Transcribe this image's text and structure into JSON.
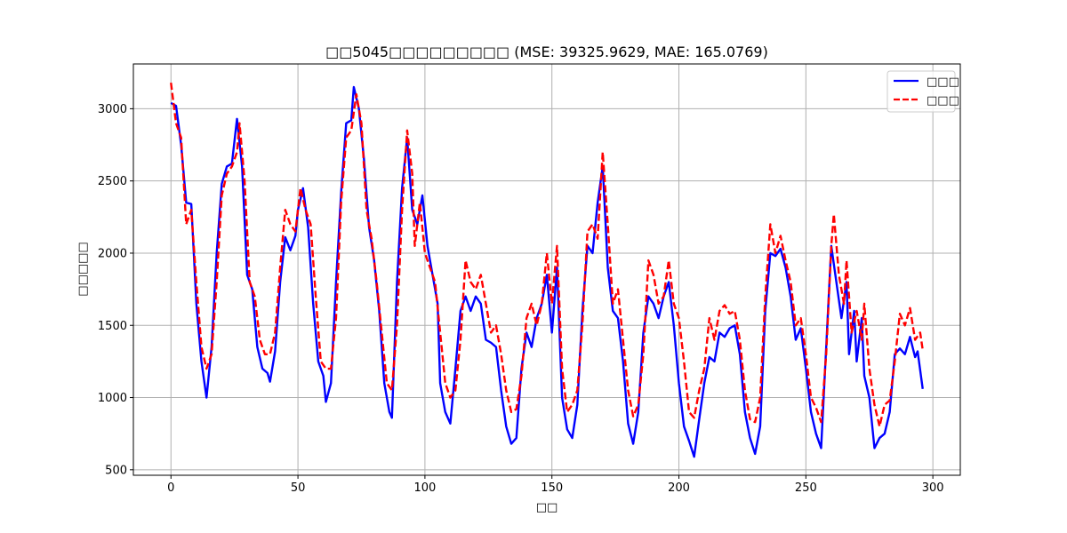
{
  "chart_data": {
    "type": "line",
    "title": "□□5045□□□□□□□□□ (MSE: 39325.9629, MAE: 165.0769)",
    "xlabel": "□□",
    "ylabel": "□□□□□",
    "xlim": [
      -14.8,
      310.8
    ],
    "ylim": [
      462,
      3310
    ],
    "xticks": [
      0,
      50,
      100,
      150,
      200,
      250,
      300
    ],
    "yticks": [
      500,
      1000,
      1500,
      2000,
      2500,
      3000
    ],
    "grid": true,
    "legend_position": "top-right",
    "series": [
      {
        "name": "□□□",
        "color": "#0000ff",
        "style": "solid",
        "keyframes": [
          [
            0,
            3040
          ],
          [
            2,
            3020
          ],
          [
            4,
            2750
          ],
          [
            6,
            2350
          ],
          [
            8,
            2340
          ],
          [
            10,
            1650
          ],
          [
            12,
            1250
          ],
          [
            14,
            1000
          ],
          [
            16,
            1350
          ],
          [
            18,
            2000
          ],
          [
            20,
            2480
          ],
          [
            22,
            2600
          ],
          [
            24,
            2620
          ],
          [
            26,
            2930
          ],
          [
            28,
            2600
          ],
          [
            30,
            1850
          ],
          [
            32,
            1750
          ],
          [
            34,
            1350
          ],
          [
            36,
            1200
          ],
          [
            38,
            1170
          ],
          [
            39,
            1110
          ],
          [
            41,
            1320
          ],
          [
            43,
            1800
          ],
          [
            45,
            2110
          ],
          [
            47,
            2020
          ],
          [
            49,
            2120
          ],
          [
            50,
            2300
          ],
          [
            52,
            2450
          ],
          [
            54,
            2180
          ],
          [
            56,
            1650
          ],
          [
            58,
            1250
          ],
          [
            60,
            1150
          ],
          [
            61,
            970
          ],
          [
            63,
            1100
          ],
          [
            65,
            1800
          ],
          [
            67,
            2420
          ],
          [
            69,
            2900
          ],
          [
            71,
            2920
          ],
          [
            72,
            3150
          ],
          [
            74,
            3000
          ],
          [
            76,
            2650
          ],
          [
            78,
            2180
          ],
          [
            80,
            1950
          ],
          [
            82,
            1600
          ],
          [
            84,
            1100
          ],
          [
            86,
            900
          ],
          [
            87,
            860
          ],
          [
            89,
            1800
          ],
          [
            91,
            2450
          ],
          [
            93,
            2800
          ],
          [
            95,
            2300
          ],
          [
            97,
            2200
          ],
          [
            99,
            2400
          ],
          [
            101,
            2050
          ],
          [
            103,
            1850
          ],
          [
            105,
            1650
          ],
          [
            106,
            1100
          ],
          [
            108,
            900
          ],
          [
            110,
            820
          ],
          [
            112,
            1200
          ],
          [
            114,
            1600
          ],
          [
            116,
            1700
          ],
          [
            118,
            1600
          ],
          [
            120,
            1700
          ],
          [
            122,
            1650
          ],
          [
            124,
            1400
          ],
          [
            126,
            1380
          ],
          [
            128,
            1350
          ],
          [
            130,
            1050
          ],
          [
            132,
            800
          ],
          [
            134,
            680
          ],
          [
            136,
            720
          ],
          [
            138,
            1200
          ],
          [
            140,
            1450
          ],
          [
            142,
            1350
          ],
          [
            144,
            1550
          ],
          [
            146,
            1650
          ],
          [
            148,
            1850
          ],
          [
            150,
            1450
          ],
          [
            152,
            1900
          ],
          [
            154,
            1000
          ],
          [
            156,
            780
          ],
          [
            158,
            720
          ],
          [
            160,
            950
          ],
          [
            162,
            1600
          ],
          [
            164,
            2050
          ],
          [
            166,
            2000
          ],
          [
            168,
            2350
          ],
          [
            170,
            2600
          ],
          [
            172,
            1900
          ],
          [
            174,
            1600
          ],
          [
            176,
            1550
          ],
          [
            178,
            1250
          ],
          [
            180,
            820
          ],
          [
            182,
            680
          ],
          [
            184,
            900
          ],
          [
            186,
            1450
          ],
          [
            188,
            1700
          ],
          [
            190,
            1650
          ],
          [
            192,
            1550
          ],
          [
            194,
            1700
          ],
          [
            196,
            1800
          ],
          [
            198,
            1500
          ],
          [
            200,
            1100
          ],
          [
            202,
            800
          ],
          [
            204,
            700
          ],
          [
            206,
            590
          ],
          [
            208,
            850
          ],
          [
            210,
            1100
          ],
          [
            212,
            1280
          ],
          [
            214,
            1250
          ],
          [
            216,
            1450
          ],
          [
            218,
            1420
          ],
          [
            220,
            1480
          ],
          [
            222,
            1500
          ],
          [
            224,
            1300
          ],
          [
            226,
            900
          ],
          [
            228,
            720
          ],
          [
            230,
            610
          ],
          [
            232,
            800
          ],
          [
            234,
            1600
          ],
          [
            236,
            2000
          ],
          [
            238,
            1980
          ],
          [
            240,
            2030
          ],
          [
            242,
            1900
          ],
          [
            244,
            1700
          ],
          [
            246,
            1400
          ],
          [
            248,
            1480
          ],
          [
            250,
            1200
          ],
          [
            252,
            900
          ],
          [
            254,
            750
          ],
          [
            256,
            650
          ],
          [
            258,
            1350
          ],
          [
            260,
            2050
          ],
          [
            262,
            1800
          ],
          [
            264,
            1550
          ],
          [
            266,
            1800
          ],
          [
            267,
            1300
          ],
          [
            269,
            1600
          ],
          [
            270,
            1250
          ],
          [
            272,
            1550
          ],
          [
            273,
            1150
          ],
          [
            275,
            1000
          ],
          [
            277,
            650
          ],
          [
            279,
            720
          ],
          [
            281,
            750
          ],
          [
            283,
            900
          ],
          [
            285,
            1300
          ],
          [
            287,
            1340
          ],
          [
            289,
            1300
          ],
          [
            291,
            1420
          ],
          [
            293,
            1280
          ],
          [
            294,
            1320
          ],
          [
            296,
            1060
          ]
        ]
      },
      {
        "name": "□□□",
        "color": "#ff0000",
        "style": "dashed",
        "keyframes": [
          [
            0,
            3180
          ],
          [
            2,
            2900
          ],
          [
            4,
            2800
          ],
          [
            6,
            2200
          ],
          [
            8,
            2300
          ],
          [
            10,
            1800
          ],
          [
            12,
            1350
          ],
          [
            14,
            1200
          ],
          [
            16,
            1300
          ],
          [
            18,
            1800
          ],
          [
            20,
            2400
          ],
          [
            22,
            2550
          ],
          [
            24,
            2600
          ],
          [
            26,
            2700
          ],
          [
            27,
            2900
          ],
          [
            29,
            2500
          ],
          [
            31,
            1800
          ],
          [
            33,
            1700
          ],
          [
            35,
            1400
          ],
          [
            37,
            1300
          ],
          [
            39,
            1300
          ],
          [
            41,
            1450
          ],
          [
            43,
            1900
          ],
          [
            45,
            2300
          ],
          [
            47,
            2200
          ],
          [
            49,
            2150
          ],
          [
            51,
            2450
          ],
          [
            53,
            2300
          ],
          [
            55,
            2200
          ],
          [
            57,
            1700
          ],
          [
            59,
            1250
          ],
          [
            61,
            1200
          ],
          [
            63,
            1200
          ],
          [
            65,
            1550
          ],
          [
            67,
            2350
          ],
          [
            69,
            2800
          ],
          [
            71,
            2850
          ],
          [
            73,
            3100
          ],
          [
            75,
            2900
          ],
          [
            77,
            2300
          ],
          [
            79,
            2100
          ],
          [
            81,
            1800
          ],
          [
            83,
            1450
          ],
          [
            85,
            1100
          ],
          [
            87,
            1050
          ],
          [
            89,
            1500
          ],
          [
            91,
            2300
          ],
          [
            93,
            2850
          ],
          [
            95,
            2550
          ],
          [
            96,
            2050
          ],
          [
            98,
            2350
          ],
          [
            100,
            2000
          ],
          [
            102,
            1900
          ],
          [
            104,
            1800
          ],
          [
            106,
            1450
          ],
          [
            108,
            1100
          ],
          [
            110,
            1000
          ],
          [
            112,
            1050
          ],
          [
            114,
            1400
          ],
          [
            116,
            1950
          ],
          [
            118,
            1800
          ],
          [
            120,
            1750
          ],
          [
            122,
            1850
          ],
          [
            124,
            1650
          ],
          [
            126,
            1450
          ],
          [
            128,
            1500
          ],
          [
            130,
            1300
          ],
          [
            132,
            1050
          ],
          [
            134,
            900
          ],
          [
            136,
            920
          ],
          [
            138,
            1150
          ],
          [
            140,
            1550
          ],
          [
            142,
            1650
          ],
          [
            144,
            1500
          ],
          [
            146,
            1650
          ],
          [
            148,
            2000
          ],
          [
            150,
            1650
          ],
          [
            152,
            2050
          ],
          [
            154,
            1200
          ],
          [
            156,
            900
          ],
          [
            158,
            950
          ],
          [
            160,
            1050
          ],
          [
            162,
            1500
          ],
          [
            164,
            2150
          ],
          [
            166,
            2200
          ],
          [
            168,
            2100
          ],
          [
            170,
            2700
          ],
          [
            172,
            2200
          ],
          [
            174,
            1650
          ],
          [
            176,
            1750
          ],
          [
            178,
            1400
          ],
          [
            180,
            1050
          ],
          [
            182,
            870
          ],
          [
            184,
            950
          ],
          [
            186,
            1300
          ],
          [
            188,
            1950
          ],
          [
            190,
            1850
          ],
          [
            192,
            1650
          ],
          [
            194,
            1700
          ],
          [
            196,
            1950
          ],
          [
            198,
            1650
          ],
          [
            200,
            1550
          ],
          [
            202,
            1250
          ],
          [
            204,
            900
          ],
          [
            206,
            860
          ],
          [
            208,
            1050
          ],
          [
            210,
            1200
          ],
          [
            212,
            1550
          ],
          [
            214,
            1400
          ],
          [
            216,
            1600
          ],
          [
            218,
            1640
          ],
          [
            220,
            1580
          ],
          [
            222,
            1600
          ],
          [
            224,
            1400
          ],
          [
            226,
            1050
          ],
          [
            228,
            850
          ],
          [
            230,
            830
          ],
          [
            232,
            1000
          ],
          [
            234,
            1700
          ],
          [
            236,
            2200
          ],
          [
            238,
            2000
          ],
          [
            240,
            2120
          ],
          [
            242,
            1950
          ],
          [
            244,
            1800
          ],
          [
            246,
            1500
          ],
          [
            248,
            1550
          ],
          [
            250,
            1300
          ],
          [
            252,
            1000
          ],
          [
            254,
            930
          ],
          [
            256,
            830
          ],
          [
            258,
            1300
          ],
          [
            260,
            2050
          ],
          [
            261,
            2270
          ],
          [
            263,
            1850
          ],
          [
            265,
            1650
          ],
          [
            266,
            1950
          ],
          [
            268,
            1450
          ],
          [
            270,
            1600
          ],
          [
            272,
            1400
          ],
          [
            273,
            1650
          ],
          [
            275,
            1200
          ],
          [
            277,
            950
          ],
          [
            279,
            800
          ],
          [
            281,
            950
          ],
          [
            283,
            980
          ],
          [
            285,
            1250
          ],
          [
            287,
            1580
          ],
          [
            289,
            1500
          ],
          [
            291,
            1620
          ],
          [
            293,
            1400
          ],
          [
            295,
            1450
          ],
          [
            296,
            1330
          ]
        ]
      }
    ]
  }
}
